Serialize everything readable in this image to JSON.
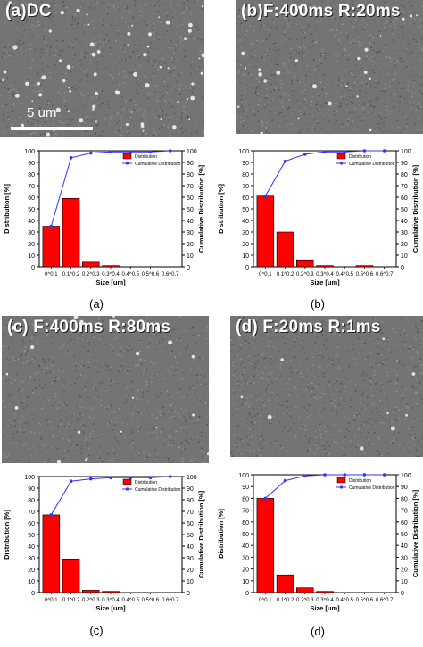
{
  "figure": {
    "panels": [
      {
        "id": "a",
        "sem_title": "(a)DC",
        "scale_label": "5 um",
        "caption": "(a)"
      },
      {
        "id": "b",
        "sem_title": "(b)F:400ms R:20ms",
        "caption": "(b)"
      },
      {
        "id": "c",
        "sem_title": "(c) F:400ms R:80ms",
        "caption": "(c)"
      },
      {
        "id": "d",
        "sem_title": "(d) F:20ms R:1ms",
        "caption": "(d)"
      }
    ]
  },
  "chart_data": [
    {
      "type": "bar",
      "categories": [
        "0^0.1",
        "0.1^0.2",
        "0.2^0.3",
        "0.3^0.4",
        "0.4^0.5",
        "0.5^0.6",
        "0.6^0.7"
      ],
      "series": [
        {
          "name": "Distribution",
          "type": "bar",
          "values": [
            35,
            59,
            4,
            1,
            0,
            0,
            0
          ]
        },
        {
          "name": "Cumulative Distribution",
          "type": "line",
          "values": [
            35,
            94,
            98,
            99,
            99,
            99,
            100
          ]
        }
      ],
      "xlabel": "Size [um]",
      "ylabel": "Distribution [%]",
      "y2label": "Cumulative Distribution [%]",
      "ylim": [
        0,
        100
      ],
      "yticks": [
        0,
        10,
        20,
        30,
        40,
        50,
        60,
        70,
        80,
        90,
        100
      ],
      "legend": "top-right",
      "colors": {
        "bar": "#ff0000",
        "line": "#3333ff"
      }
    },
    {
      "type": "bar",
      "categories": [
        "0^0.1",
        "0.1^0.2",
        "0.2^0.3",
        "0.3^0.4",
        "0.4^0.5",
        "0.5^0.6",
        "0.6^0.7"
      ],
      "series": [
        {
          "name": "Distribution",
          "type": "bar",
          "values": [
            61,
            30,
            6,
            1,
            0,
            1,
            0
          ]
        },
        {
          "name": "Cumulative Distribution",
          "type": "line",
          "values": [
            61,
            91,
            97,
            99,
            99,
            100,
            100
          ]
        }
      ],
      "xlabel": "Size [um]",
      "ylabel": "Distribution [%]",
      "y2label": "Cumulative Distribution [%]",
      "ylim": [
        0,
        100
      ],
      "yticks": [
        0,
        10,
        20,
        30,
        40,
        50,
        60,
        70,
        80,
        90,
        100
      ],
      "legend": "top-right",
      "colors": {
        "bar": "#ff0000",
        "line": "#3333ff"
      }
    },
    {
      "type": "bar",
      "categories": [
        "0^0.1",
        "0.1^0.2",
        "0.2^0.3",
        "0.3^0.4",
        "0.4^0.5",
        "0.5^0.6",
        "0.6^0.7"
      ],
      "series": [
        {
          "name": "Distribution",
          "type": "bar",
          "values": [
            67,
            29,
            2,
            1,
            0,
            0,
            0
          ]
        },
        {
          "name": "Cumulative Distribution",
          "type": "line",
          "values": [
            67,
            96,
            98,
            99,
            99,
            99,
            100
          ]
        }
      ],
      "xlabel": "Size [um]",
      "ylabel": "Distribution [%]",
      "y2label": "Cumulative Distribution [%]",
      "ylim": [
        0,
        100
      ],
      "yticks": [
        0,
        10,
        20,
        30,
        40,
        50,
        60,
        70,
        80,
        90,
        100
      ],
      "legend": "top-right",
      "colors": {
        "bar": "#ff0000",
        "line": "#3333ff"
      }
    },
    {
      "type": "bar",
      "categories": [
        "0^0.1",
        "0.1^0.2",
        "0.2^0.3",
        "0.3^0.4",
        "0.4^0.5",
        "0.5^0.6",
        "0.6^0.7"
      ],
      "series": [
        {
          "name": "Distribution",
          "type": "bar",
          "values": [
            80,
            15,
            4,
            1,
            0,
            0,
            0
          ]
        },
        {
          "name": "Cumulative Distribution",
          "type": "line",
          "values": [
            80,
            95,
            99,
            100,
            100,
            100,
            100
          ]
        }
      ],
      "xlabel": "Size [um]",
      "ylabel": "Distribution [%]",
      "y2label": "Cumulative Distribution [%]",
      "ylim": [
        0,
        100
      ],
      "yticks": [
        0,
        10,
        20,
        30,
        40,
        50,
        60,
        70,
        80,
        90,
        100
      ],
      "legend": "top-right",
      "colors": {
        "bar": "#ff0000",
        "line": "#3333ff"
      }
    }
  ]
}
